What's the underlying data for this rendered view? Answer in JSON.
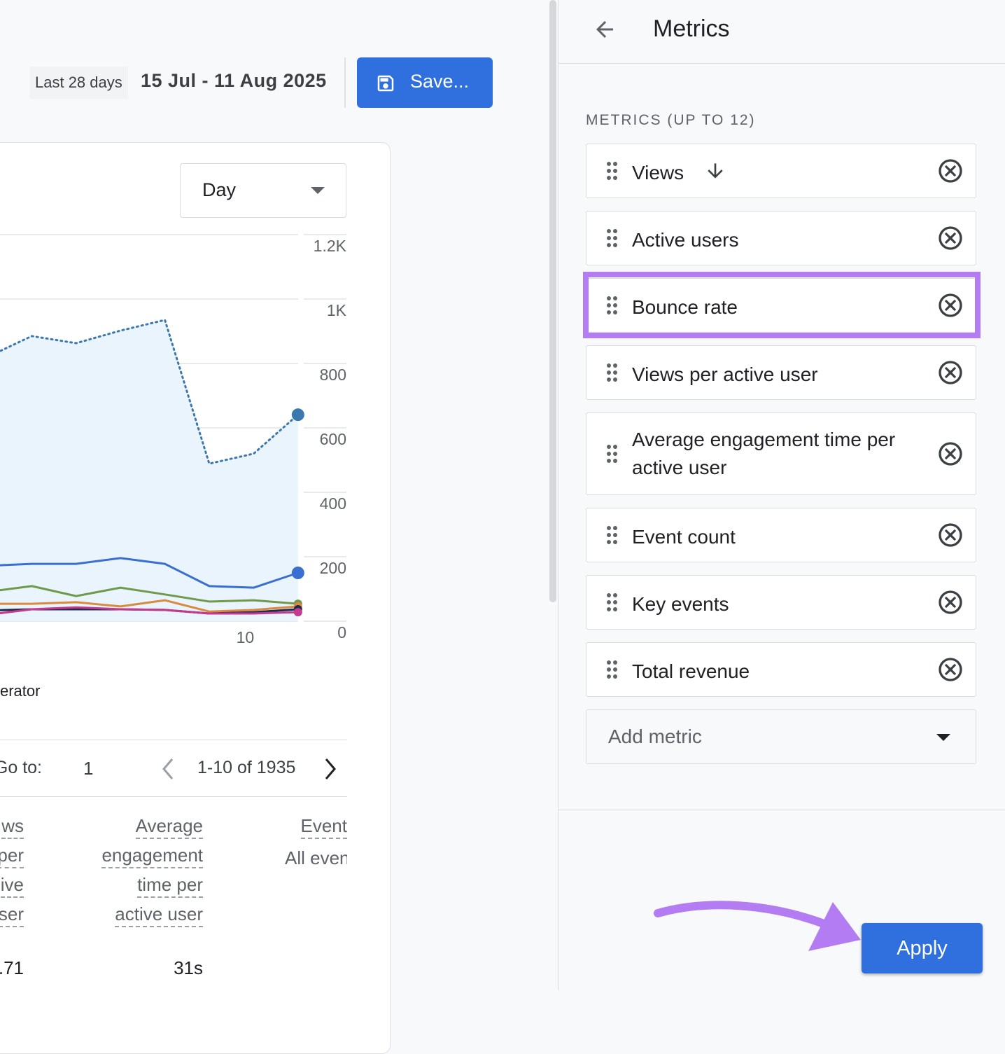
{
  "header": {
    "range_label": "Last 28 days",
    "date_range": "15 Jul - 11 Aug 2025",
    "save_button": "Save..."
  },
  "card": {
    "granularity": "Day",
    "legend_fragment": "erator",
    "pagination": {
      "goto_label": "Go to:",
      "page": "1",
      "range": "1-10 of 1935"
    },
    "table": {
      "columns": [
        {
          "lines": [
            "ws",
            "per",
            "ive",
            "ser"
          ],
          "value": ".71"
        },
        {
          "lines": [
            "Average",
            "engagement",
            "time per",
            "active user"
          ],
          "value": "31s"
        },
        {
          "lines": [
            "Event"
          ],
          "sub": "All events"
        }
      ]
    }
  },
  "chart_data": {
    "type": "line",
    "categories": [
      null,
      null,
      null,
      null,
      null,
      null,
      "10",
      null
    ],
    "ylim": [
      0,
      1200
    ],
    "yticks": [
      0,
      200,
      400,
      600,
      800,
      {
        "value": 1000,
        "label": "1K"
      },
      {
        "value": 1200,
        "label": "1.2K"
      }
    ],
    "grid": true,
    "series": [
      {
        "color": "#3b78b0",
        "style": "dotted",
        "area": true,
        "values": [
          820,
          885,
          863,
          902,
          935,
          489,
          520,
          641
        ]
      },
      {
        "color": "#3a6fd1",
        "values": [
          172,
          178,
          178,
          196,
          178,
          109,
          104,
          150
        ]
      },
      {
        "color": "#6e9a4a",
        "values": [
          91,
          109,
          78,
          104,
          83,
          61,
          65,
          54
        ]
      },
      {
        "color": "#d98a3f",
        "values": [
          54,
          54,
          59,
          46,
          65,
          30,
          35,
          46
        ]
      },
      {
        "color": "#1f2a4d",
        "values": [
          33,
          37,
          37,
          37,
          35,
          24,
          28,
          37
        ]
      },
      {
        "color": "#c43a8e",
        "values": [
          20,
          37,
          43,
          37,
          35,
          24,
          24,
          28
        ]
      }
    ]
  },
  "panel": {
    "title": "Metrics",
    "section_label": "METRICS (UP TO 12)",
    "metrics": [
      "Views",
      "Active users",
      "Bounce rate",
      "Views per active user",
      "Average engagement time per active user",
      "Event count",
      "Key events",
      "Total revenue"
    ],
    "add_metric": "Add metric",
    "apply_button": "Apply"
  }
}
